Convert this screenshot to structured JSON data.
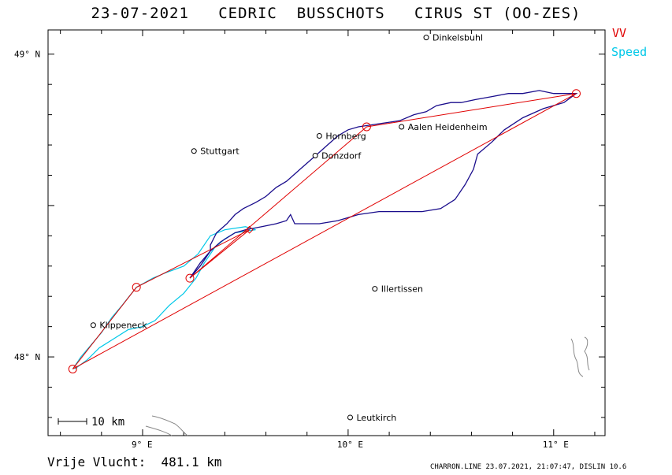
{
  "title": "23-07-2021   CEDRIC  BUSSCHOTS   CIRUS ST (OO-ZES)",
  "legend": {
    "vv": "VV",
    "speed": "Speed"
  },
  "colors": {
    "task": "#e00000",
    "track": "#1a0d8c",
    "speed": "#00c8e8",
    "frame": "#000000"
  },
  "axes": {
    "lon_range": [
      8.54,
      11.25
    ],
    "lat_range": [
      47.74,
      49.08
    ],
    "lat_labels": [
      {
        "value": 49,
        "text": "49° N"
      },
      {
        "value": 48,
        "text": "48° N"
      }
    ],
    "lon_labels": [
      {
        "value": 9,
        "text": "9° E"
      },
      {
        "value": 10,
        "text": "10° E"
      },
      {
        "value": 11,
        "text": "11° E"
      }
    ]
  },
  "towns": [
    {
      "name": "Dinkelsbuhl",
      "lon": 10.38,
      "lat": 49.055
    },
    {
      "name": "Stuttgart",
      "lon": 9.25,
      "lat": 48.68
    },
    {
      "name": "Hornberg",
      "lon": 9.86,
      "lat": 48.73
    },
    {
      "name": "Aalen Heidenheim",
      "lon": 10.26,
      "lat": 48.76
    },
    {
      "name": "Donzdorf",
      "lon": 9.84,
      "lat": 48.665
    },
    {
      "name": "Illertissen",
      "lon": 10.13,
      "lat": 48.225
    },
    {
      "name": "Klippeneck",
      "lon": 8.76,
      "lat": 48.105
    },
    {
      "name": "Leutkirch",
      "lon": 10.01,
      "lat": 47.8
    }
  ],
  "turnpoints": [
    {
      "lon": 8.66,
      "lat": 47.96
    },
    {
      "lon": 8.97,
      "lat": 48.23
    },
    {
      "lon": 9.23,
      "lat": 48.26
    },
    {
      "lon": 9.52,
      "lat": 48.42
    },
    {
      "lon": 10.09,
      "lat": 48.76
    },
    {
      "lon": 11.11,
      "lat": 48.87
    }
  ],
  "task_route_order": [
    0,
    1,
    3,
    2,
    4,
    5,
    0
  ],
  "track": [
    [
      9.23,
      48.26
    ],
    [
      9.28,
      48.3
    ],
    [
      9.33,
      48.35
    ],
    [
      9.33,
      48.37
    ],
    [
      9.36,
      48.41
    ],
    [
      9.41,
      48.44
    ],
    [
      9.45,
      48.47
    ],
    [
      9.49,
      48.49
    ],
    [
      9.55,
      48.51
    ],
    [
      9.6,
      48.53
    ],
    [
      9.65,
      48.56
    ],
    [
      9.7,
      48.58
    ],
    [
      9.75,
      48.61
    ],
    [
      9.8,
      48.64
    ],
    [
      9.85,
      48.67
    ],
    [
      9.9,
      48.7
    ],
    [
      9.95,
      48.73
    ],
    [
      10.0,
      48.75
    ],
    [
      10.05,
      48.76
    ],
    [
      10.15,
      48.77
    ],
    [
      10.25,
      48.78
    ],
    [
      10.32,
      48.8
    ],
    [
      10.38,
      48.81
    ],
    [
      10.43,
      48.83
    ],
    [
      10.5,
      48.84
    ],
    [
      10.55,
      48.84
    ],
    [
      10.62,
      48.85
    ],
    [
      10.7,
      48.86
    ],
    [
      10.78,
      48.87
    ],
    [
      10.85,
      48.87
    ],
    [
      10.93,
      48.88
    ],
    [
      11.0,
      48.87
    ],
    [
      11.07,
      48.87
    ],
    [
      11.11,
      48.87
    ],
    [
      11.05,
      48.84
    ],
    [
      10.95,
      48.82
    ],
    [
      10.85,
      48.79
    ],
    [
      10.76,
      48.75
    ],
    [
      10.7,
      48.71
    ],
    [
      10.63,
      48.67
    ],
    [
      10.61,
      48.62
    ],
    [
      10.57,
      48.57
    ],
    [
      10.52,
      48.52
    ],
    [
      10.45,
      48.49
    ],
    [
      10.36,
      48.48
    ],
    [
      10.25,
      48.48
    ],
    [
      10.15,
      48.48
    ],
    [
      10.05,
      48.47
    ],
    [
      9.95,
      48.45
    ],
    [
      9.86,
      48.44
    ],
    [
      9.8,
      48.44
    ],
    [
      9.74,
      48.44
    ],
    [
      9.72,
      48.47
    ],
    [
      9.7,
      48.45
    ],
    [
      9.65,
      48.44
    ],
    [
      9.58,
      48.43
    ],
    [
      9.5,
      48.42
    ],
    [
      9.45,
      48.41
    ],
    [
      9.38,
      48.38
    ],
    [
      9.33,
      48.35
    ],
    [
      9.28,
      48.31
    ],
    [
      9.23,
      48.26
    ]
  ],
  "speed_trace": [
    [
      8.66,
      47.96
    ],
    [
      8.7,
      48.0
    ],
    [
      8.75,
      48.04
    ],
    [
      8.8,
      48.08
    ],
    [
      8.85,
      48.13
    ],
    [
      8.9,
      48.17
    ],
    [
      8.97,
      48.23
    ],
    [
      9.05,
      48.26
    ],
    [
      9.12,
      48.28
    ],
    [
      9.2,
      48.3
    ],
    [
      9.27,
      48.34
    ],
    [
      9.33,
      48.4
    ],
    [
      9.4,
      48.42
    ],
    [
      9.5,
      48.43
    ],
    [
      9.55,
      48.42
    ],
    [
      9.45,
      48.41
    ],
    [
      9.4,
      48.39
    ],
    [
      9.35,
      48.36
    ],
    [
      9.3,
      48.31
    ],
    [
      9.26,
      48.26
    ],
    [
      9.2,
      48.21
    ],
    [
      9.13,
      48.17
    ],
    [
      9.06,
      48.12
    ],
    [
      9.0,
      48.1
    ],
    [
      8.93,
      48.09
    ],
    [
      8.86,
      48.06
    ],
    [
      8.79,
      48.03
    ],
    [
      8.73,
      47.99
    ],
    [
      8.67,
      47.96
    ]
  ],
  "scale_bar": {
    "label": "10 km"
  },
  "distance": "Vrije Vlucht:  481.1 km",
  "footer": "CHARRON.LINE 23.07.2021, 21:07:47, DISLIN 10.6"
}
